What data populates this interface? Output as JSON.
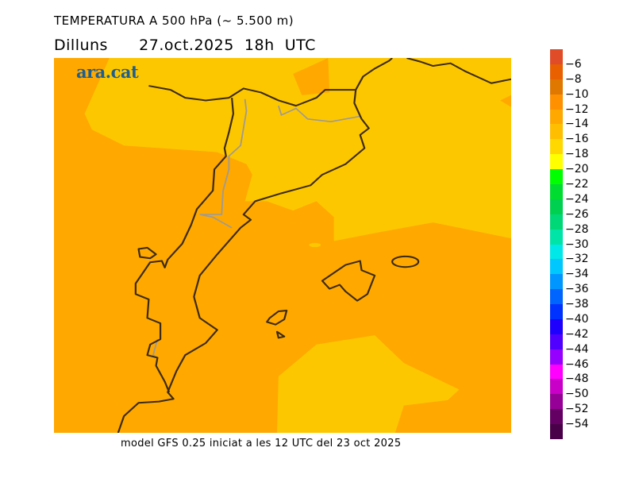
{
  "header": {
    "title": "TEMPERATURA A 500 hPa (~ 5.500 m)",
    "subtitle": "Dilluns      27.oct.2025  18h  UTC"
  },
  "logo": "ara.cat",
  "footer": "model GFS 0.25 iniciat a les 12 UTC del 23 oct 2025",
  "map": {
    "colors": {
      "orange": "#ffa800",
      "yellow": "#fdc700",
      "coast": "#3a2a10",
      "border": "#a09a90"
    }
  },
  "legend": {
    "labels": [
      "−6",
      "−8",
      "−10",
      "−12",
      "−14",
      "−16",
      "−18",
      "−20",
      "−22",
      "−24",
      "−26",
      "−28",
      "−30",
      "−32",
      "−34",
      "−36",
      "−38",
      "−40",
      "−42",
      "−44",
      "−46",
      "−48",
      "−50",
      "−52",
      "−54"
    ],
    "colors": [
      "#e04c28",
      "#e86000",
      "#e07800",
      "#ff9000",
      "#ffa800",
      "#ffbe00",
      "#ffd800",
      "#ffff00",
      "#00ff00",
      "#00dd30",
      "#00d050",
      "#00d878",
      "#00e4a8",
      "#00e8e8",
      "#00c8ff",
      "#0096ff",
      "#0064ff",
      "#0032ff",
      "#1e00ff",
      "#5000ff",
      "#9600ff",
      "#ff00ff",
      "#c800c8",
      "#960096",
      "#640064",
      "#4a0048"
    ]
  }
}
